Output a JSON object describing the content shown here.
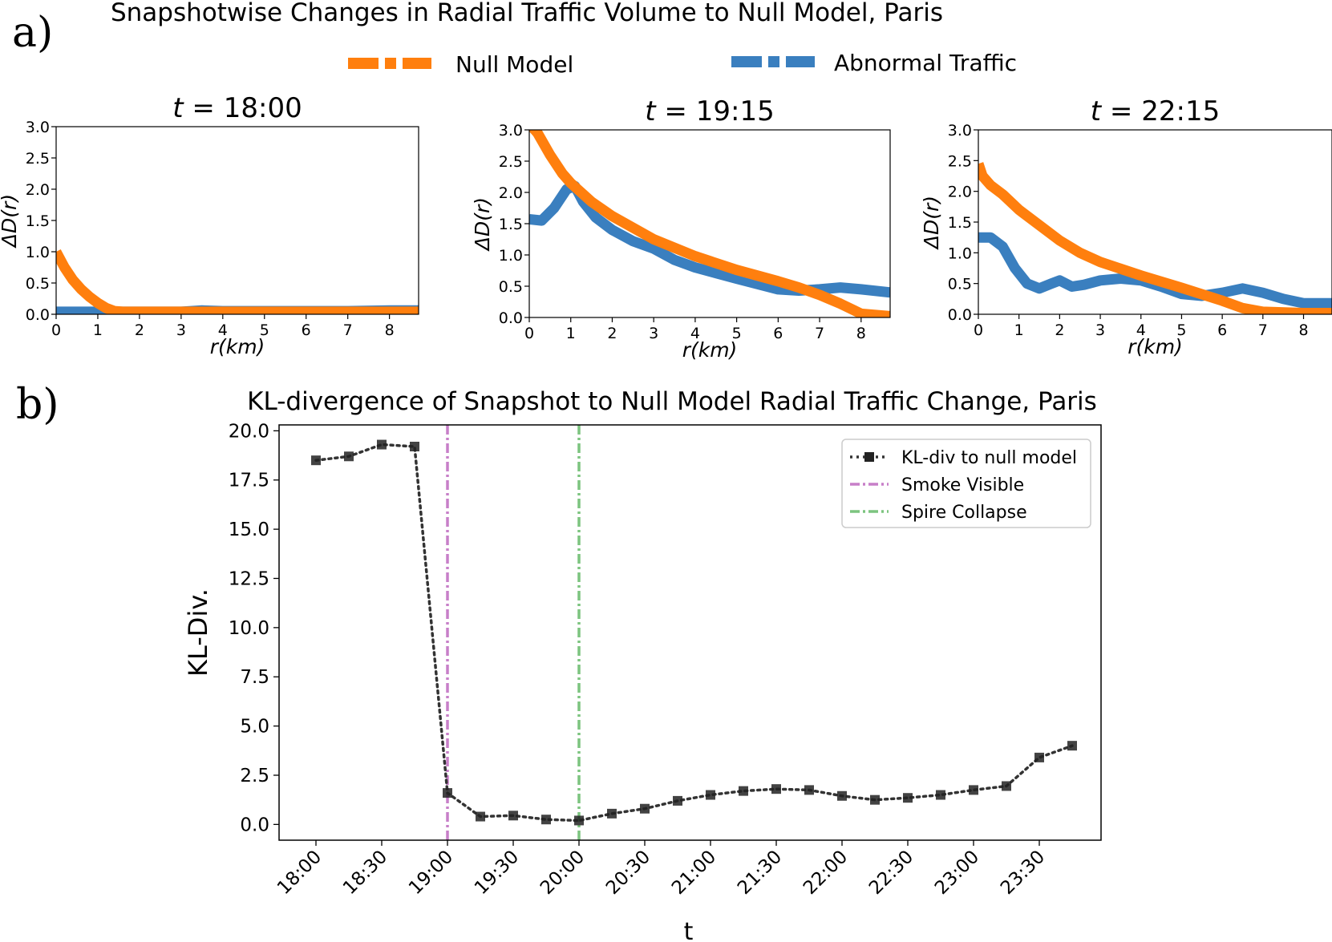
{
  "figure": {
    "panel_a_label": "a)",
    "panel_b_label": "b)",
    "title_a": "Snapshotwise Changes in Radial Traffic Volume to Null Model, Paris",
    "title_b": "KL-divergence of Snapshot to Null Model Radial Traffic Change, Paris"
  },
  "colors": {
    "null_model": "#ff7f0e",
    "abnormal": "#3a7fbf",
    "kl_line": "#333333",
    "smoke": "#c77fc8",
    "spire": "#7cc47f"
  },
  "chart_data": [
    {
      "type": "line",
      "title": "t = 18:00",
      "xlabel": "r(km)",
      "ylabel": "ΔD(r)",
      "xlim": [
        0,
        8.7
      ],
      "ylim": [
        0,
        3.0
      ],
      "xticks": [
        "0",
        "1",
        "2",
        "3",
        "4",
        "5",
        "6",
        "7",
        "8"
      ],
      "yticks": [
        "0.0",
        "0.5",
        "1.0",
        "1.5",
        "2.0",
        "2.5",
        "3.0"
      ],
      "legend": "shared above panels",
      "series": [
        {
          "name": "Null Model",
          "x": [
            0,
            0.2,
            0.4,
            0.6,
            0.8,
            1.0,
            1.2,
            1.4,
            1.6,
            2,
            3,
            4,
            5,
            6,
            7,
            8,
            8.7
          ],
          "y": [
            1.0,
            0.75,
            0.55,
            0.4,
            0.28,
            0.18,
            0.1,
            0.05,
            0.04,
            0.04,
            0.04,
            0.04,
            0.04,
            0.04,
            0.04,
            0.04,
            0.04
          ]
        },
        {
          "name": "Abnormal Traffic",
          "x": [
            0,
            1,
            2,
            3,
            3.5,
            4,
            5,
            6,
            7,
            8,
            8.7
          ],
          "y": [
            0.04,
            0.04,
            0.04,
            0.04,
            0.06,
            0.05,
            0.05,
            0.05,
            0.05,
            0.06,
            0.06
          ]
        }
      ]
    },
    {
      "type": "line",
      "title": "t = 19:15",
      "xlabel": "r(km)",
      "ylabel": "ΔD(r)",
      "xlim": [
        0,
        8.7
      ],
      "ylim": [
        0,
        3.0
      ],
      "xticks": [
        "0",
        "1",
        "2",
        "3",
        "4",
        "5",
        "6",
        "7",
        "8"
      ],
      "yticks": [
        "0.0",
        "0.5",
        "1.0",
        "1.5",
        "2.0",
        "2.5",
        "3.0"
      ],
      "series": [
        {
          "name": "Null Model",
          "x": [
            0,
            0.2,
            0.5,
            0.8,
            1.0,
            1.5,
            2,
            3,
            4,
            5,
            6,
            6.5,
            7,
            7.5,
            8,
            8.7
          ],
          "y": [
            3.1,
            2.95,
            2.6,
            2.3,
            2.15,
            1.85,
            1.62,
            1.25,
            0.98,
            0.76,
            0.58,
            0.48,
            0.36,
            0.22,
            0.06,
            0.02
          ]
        },
        {
          "name": "Abnormal Traffic",
          "x": [
            0,
            0.3,
            0.6,
            0.9,
            1.1,
            1.3,
            1.6,
            2,
            2.5,
            3,
            3.5,
            4,
            5,
            6,
            6.5,
            7,
            7.5,
            8,
            8.7
          ],
          "y": [
            1.57,
            1.55,
            1.75,
            2.05,
            2.1,
            1.85,
            1.6,
            1.4,
            1.22,
            1.1,
            0.92,
            0.8,
            0.62,
            0.45,
            0.43,
            0.45,
            0.48,
            0.45,
            0.4
          ]
        }
      ]
    },
    {
      "type": "line",
      "title": "t = 22:15",
      "xlabel": "r(km)",
      "ylabel": "ΔD(r)",
      "xlim": [
        0,
        8.7
      ],
      "ylim": [
        0,
        3.0
      ],
      "xticks": [
        "0",
        "1",
        "2",
        "3",
        "4",
        "5",
        "6",
        "7",
        "8"
      ],
      "yticks": [
        "0.0",
        "0.5",
        "1.0",
        "1.5",
        "2.0",
        "2.5",
        "3.0"
      ],
      "series": [
        {
          "name": "Null Model",
          "x": [
            0,
            0.1,
            0.3,
            0.6,
            1,
            1.5,
            2,
            2.5,
            3,
            4,
            5,
            6,
            6.5,
            7,
            8,
            8.7
          ],
          "y": [
            2.45,
            2.25,
            2.1,
            1.95,
            1.7,
            1.45,
            1.2,
            1.0,
            0.85,
            0.63,
            0.43,
            0.22,
            0.1,
            0.04,
            0.02,
            0.02
          ]
        },
        {
          "name": "Abnormal Traffic",
          "x": [
            0,
            0.3,
            0.6,
            0.9,
            1.2,
            1.5,
            1.8,
            2.0,
            2.3,
            2.6,
            3,
            3.5,
            4,
            4.5,
            5,
            5.5,
            6,
            6.5,
            7,
            7.5,
            8,
            8.7
          ],
          "y": [
            1.25,
            1.25,
            1.1,
            0.75,
            0.5,
            0.42,
            0.5,
            0.55,
            0.45,
            0.48,
            0.55,
            0.58,
            0.55,
            0.45,
            0.33,
            0.3,
            0.35,
            0.42,
            0.35,
            0.25,
            0.18,
            0.18
          ]
        }
      ]
    },
    {
      "type": "line",
      "title": "",
      "xlabel": "t",
      "ylabel": "KL-Div.",
      "ylim": [
        -0.8,
        20.3
      ],
      "yticks": [
        "0.0",
        "2.5",
        "5.0",
        "7.5",
        "10.0",
        "12.5",
        "15.0",
        "17.5",
        "20.0"
      ],
      "xticks": [
        "18:00",
        "18:30",
        "19:00",
        "19:30",
        "20:00",
        "20:30",
        "21:00",
        "21:30",
        "22:00",
        "22:30",
        "23:00",
        "23:30"
      ],
      "legend": "top-right",
      "x": [
        "18:00",
        "18:15",
        "18:30",
        "18:45",
        "19:00",
        "19:15",
        "19:30",
        "19:45",
        "20:00",
        "20:15",
        "20:30",
        "20:45",
        "21:00",
        "21:15",
        "21:30",
        "21:45",
        "22:00",
        "22:15",
        "22:30",
        "22:45",
        "23:00",
        "23:15",
        "23:30",
        "23:45"
      ],
      "series": [
        {
          "name": "KL-div to null model",
          "values": [
            18.5,
            18.7,
            19.3,
            19.2,
            1.6,
            0.4,
            0.45,
            0.25,
            0.2,
            0.55,
            0.8,
            1.2,
            1.5,
            1.7,
            1.8,
            1.75,
            1.45,
            1.25,
            1.35,
            1.5,
            1.75,
            1.95,
            3.4,
            4.0
          ]
        }
      ],
      "vlines": [
        {
          "name": "Smoke Visible",
          "x": "19:00"
        },
        {
          "name": "Spire Collapse",
          "x": "20:00"
        }
      ]
    }
  ],
  "legend_a": {
    "null_label": "Null Model",
    "abnormal_label": "Abnormal Traffic"
  }
}
